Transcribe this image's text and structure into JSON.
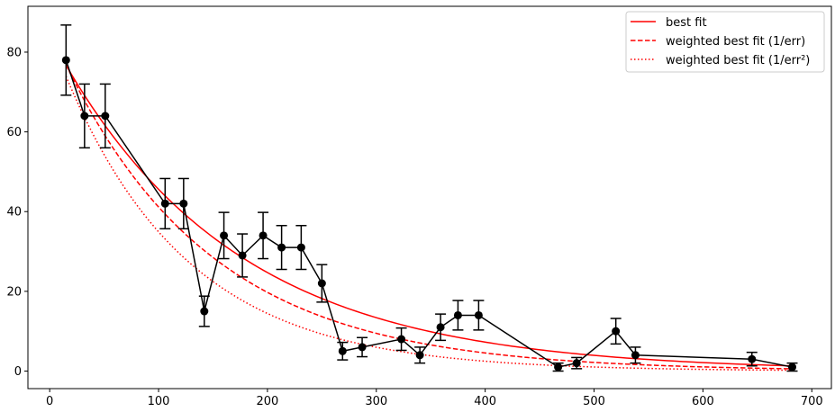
{
  "chart_data": {
    "type": "scatter",
    "title": "",
    "xlabel": "",
    "ylabel": "",
    "xlim": [
      -20,
      718
    ],
    "ylim": [
      -4.4,
      91.5
    ],
    "xticks": [
      0,
      100,
      200,
      300,
      400,
      500,
      600,
      700
    ],
    "yticks": [
      0,
      20,
      40,
      60,
      80
    ],
    "xtick_labels": [
      "0",
      "100",
      "200",
      "300",
      "400",
      "500",
      "600",
      "700"
    ],
    "ytick_labels": [
      "0",
      "20",
      "40",
      "60",
      "80"
    ],
    "grid": false,
    "legend_position": "upper right",
    "data_series": {
      "name": "",
      "color": "#000000",
      "x": [
        15,
        32,
        51,
        106,
        123,
        142,
        160,
        177,
        196,
        213,
        231,
        250,
        269,
        287,
        323,
        340,
        359,
        375,
        394,
        467,
        484,
        520,
        538,
        645,
        682
      ],
      "y": [
        78,
        64,
        64,
        42,
        42,
        15,
        34,
        29,
        34,
        31,
        31,
        22,
        5,
        6,
        8,
        4,
        11,
        14,
        14,
        1,
        2,
        10,
        4,
        3,
        1
      ],
      "yerr": [
        8.8,
        8,
        8,
        6.3,
        6.3,
        3.8,
        5.8,
        5.4,
        5.8,
        5.5,
        5.5,
        4.7,
        2.2,
        2.4,
        2.8,
        2,
        3.3,
        3.7,
        3.7,
        1,
        1.4,
        3.2,
        2,
        1.7,
        1
      ]
    },
    "series": [
      {
        "name": "best fit",
        "color": "#ff0000",
        "style": "solid",
        "amplitude": 84.1,
        "decay_length": 163.3
      },
      {
        "name": "weighted best fit (1/err)",
        "color": "#ff0000",
        "style": "dashed",
        "amplitude": 85.8,
        "decay_length": 136.1
      },
      {
        "name": "weighted best fit (1/err²)",
        "color": "#ff0000",
        "style": "dotted",
        "amplitude": 84.4,
        "decay_length": 113.3
      }
    ]
  }
}
